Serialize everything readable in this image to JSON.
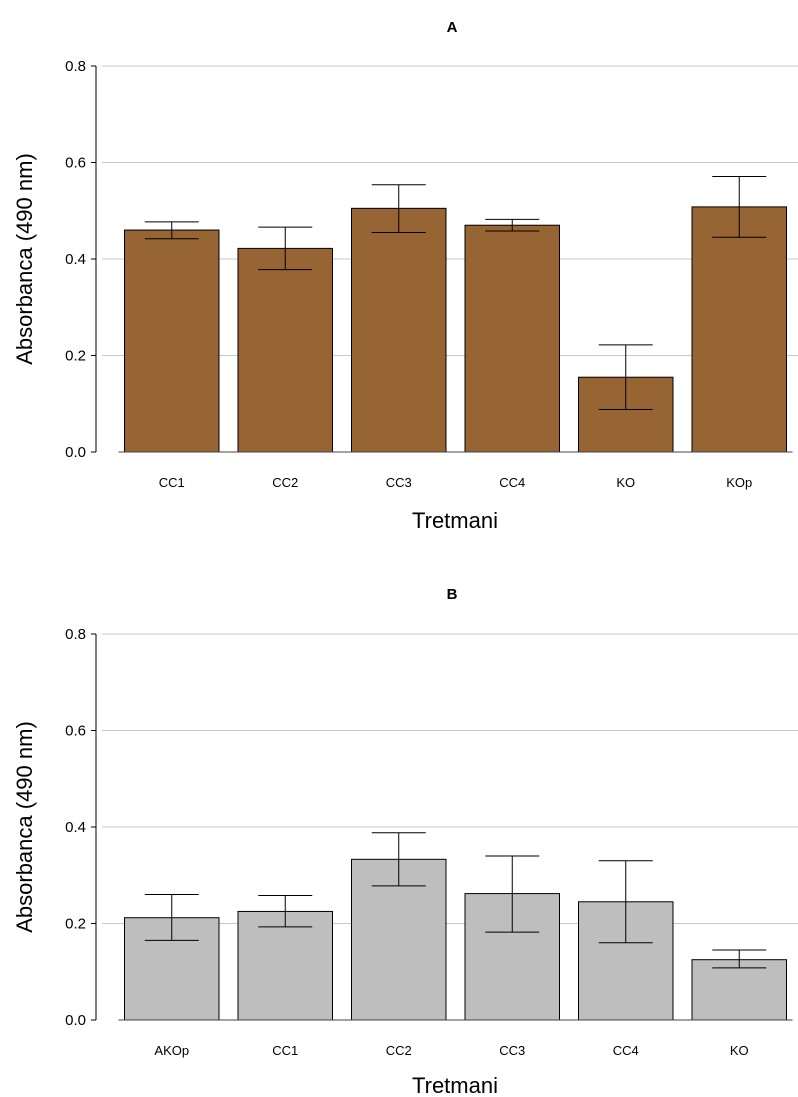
{
  "chart_data": [
    {
      "type": "bar",
      "title": "A",
      "xlabel": "Tretmani",
      "ylabel": "Absorbanca (490 nm)",
      "ylim": [
        0,
        0.8
      ],
      "yticks": [
        "0.0",
        "0.2",
        "0.4",
        "0.6",
        "0.8"
      ],
      "grid": true,
      "bar_color": "#976433",
      "categories": [
        "CC1",
        "CC2",
        "CC3",
        "CC4",
        "KO",
        "KOp"
      ],
      "values": [
        0.46,
        0.422,
        0.505,
        0.47,
        0.155,
        0.508
      ],
      "error_low": [
        0.442,
        0.378,
        0.455,
        0.458,
        0.088,
        0.445
      ],
      "error_high": [
        0.477,
        0.466,
        0.554,
        0.482,
        0.222,
        0.571
      ]
    },
    {
      "type": "bar",
      "title": "B",
      "xlabel": "Tretmani",
      "ylabel": "Absorbanca (490 nm)",
      "ylim": [
        0,
        0.8
      ],
      "yticks": [
        "0.0",
        "0.2",
        "0.4",
        "0.6",
        "0.8"
      ],
      "grid": true,
      "bar_color": "#bebebe",
      "categories": [
        "AKOp",
        "CC1",
        "CC2",
        "CC3",
        "CC4",
        "KO"
      ],
      "values": [
        0.212,
        0.225,
        0.333,
        0.262,
        0.245,
        0.125
      ],
      "error_low": [
        0.165,
        0.193,
        0.278,
        0.182,
        0.16,
        0.108
      ],
      "error_high": [
        0.26,
        0.258,
        0.388,
        0.34,
        0.33,
        0.145
      ]
    }
  ]
}
